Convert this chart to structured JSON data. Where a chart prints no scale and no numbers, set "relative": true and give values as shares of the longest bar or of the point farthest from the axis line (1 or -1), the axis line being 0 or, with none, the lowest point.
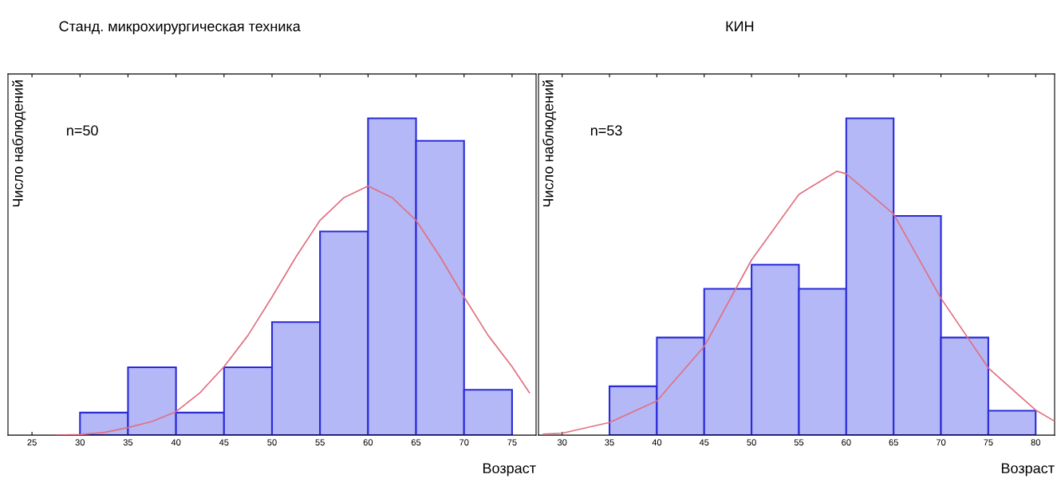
{
  "chart_data": [
    {
      "type": "histogram",
      "title": "Станд. микрохирургическая техника",
      "xlabel": "Возраст",
      "ylabel": "Число наблюдений",
      "annotations": [
        "n=50"
      ],
      "relative": true,
      "color": "#b4b8f6",
      "bins": [
        30,
        35,
        40,
        45,
        50,
        55,
        60,
        65,
        70,
        75
      ],
      "values": [
        0.071,
        0.214,
        0.071,
        0.214,
        0.357,
        0.643,
        1,
        0.929,
        0.143
      ],
      "series": [
        {
          "type": "line",
          "color": "#e07080",
          "x": [
            27.5,
            30,
            32.5,
            35,
            37.5,
            40,
            42.5,
            45,
            47.5,
            50,
            52.5,
            55,
            57.5,
            60,
            62.5,
            65,
            67.5,
            70,
            72.5,
            75,
            76.8
          ],
          "values": [
            0.0,
            0.002,
            0.008,
            0.024,
            0.043,
            0.074,
            0.134,
            0.216,
            0.315,
            0.436,
            0.563,
            0.678,
            0.75,
            0.786,
            0.75,
            0.678,
            0.563,
            0.436,
            0.315,
            0.216,
            0.134
          ]
        }
      ],
      "xlim": [
        22.5,
        77.5
      ],
      "xticks": [
        25,
        30,
        35,
        40,
        45,
        50,
        55,
        60,
        65,
        70,
        75
      ],
      "grid": false,
      "legend": false
    },
    {
      "type": "histogram",
      "title": "КИН",
      "xlabel": "Возраст",
      "ylabel": "Число наблюдений",
      "annotations": [
        "n=53"
      ],
      "relative": true,
      "color": "#b4b8f6",
      "bins": [
        35,
        40,
        45,
        50,
        55,
        60,
        65,
        70,
        75,
        80
      ],
      "values": [
        0.154,
        0.308,
        0.462,
        0.538,
        0.462,
        1,
        0.692,
        0.308,
        0.077
      ],
      "series": [
        {
          "type": "line",
          "color": "#e07080",
          "x": [
            28,
            30,
            35,
            40,
            45,
            50,
            55,
            59,
            60,
            65,
            70,
            75,
            80,
            82
          ],
          "values": [
            0.003,
            0.006,
            0.04,
            0.108,
            0.28,
            0.553,
            0.76,
            0.833,
            0.825,
            0.698,
            0.432,
            0.212,
            0.079,
            0.044
          ]
        }
      ],
      "xlim": [
        27.5,
        82
      ],
      "xticks": [
        30,
        35,
        40,
        45,
        50,
        55,
        60,
        65,
        70,
        75,
        80
      ],
      "grid": false,
      "legend": false
    }
  ]
}
